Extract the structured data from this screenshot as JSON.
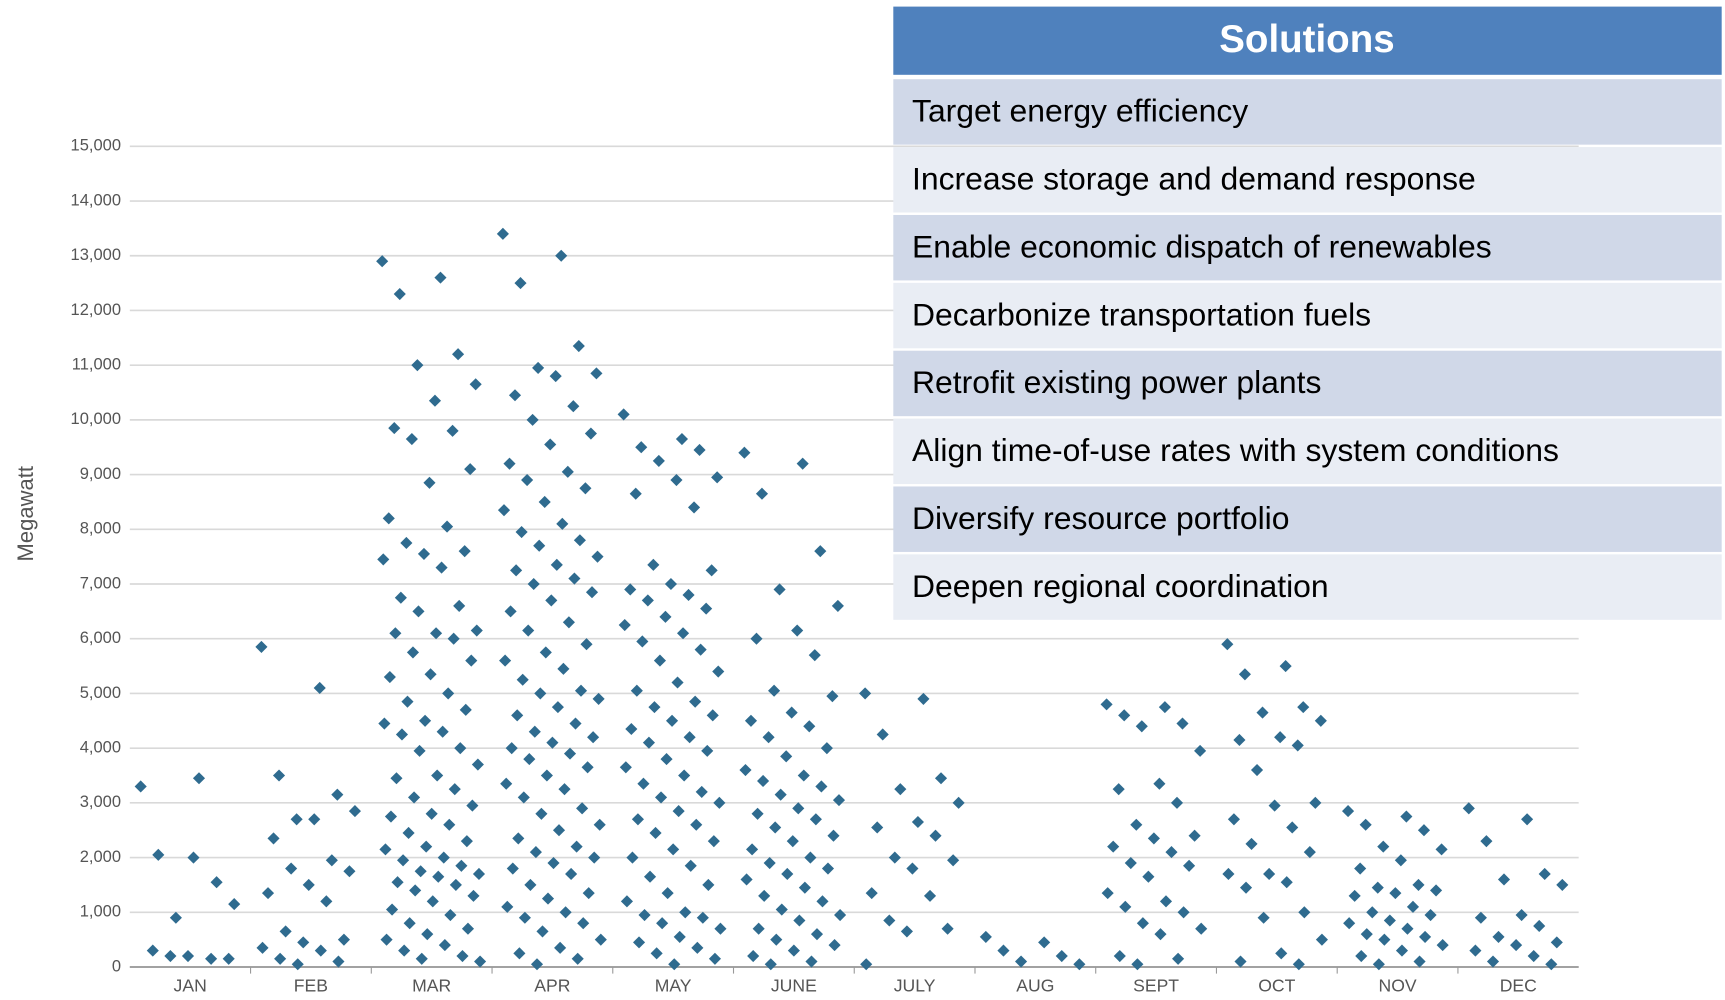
{
  "chart_data": {
    "type": "strip",
    "y_label": "Megawatt",
    "categories": [
      "JAN",
      "FEB",
      "MAR",
      "APR",
      "MAY",
      "JUNE",
      "JULY",
      "AUG",
      "SEPT",
      "OCT",
      "NOV",
      "DEC"
    ],
    "values": [
      [
        3300,
        3450,
        2050,
        1550,
        900,
        1150,
        2000,
        300,
        150,
        200,
        150,
        200
      ],
      [
        5850,
        5100,
        3500,
        3150,
        2700,
        2850,
        2700,
        2350,
        1950,
        1800,
        1750,
        1500,
        1350,
        1200,
        650,
        500,
        450,
        350,
        300,
        150,
        100,
        50
      ],
      [
        12900,
        12600,
        12300,
        11200,
        11000,
        10650,
        10350,
        9850,
        9800,
        9650,
        9100,
        8850,
        8200,
        8050,
        7750,
        7600,
        7550,
        7450,
        7300,
        6750,
        6600,
        6500,
        6150,
        6100,
        6100,
        6000,
        5750,
        5600,
        5350,
        5300,
        5000,
        4850,
        4700,
        4500,
        4450,
        4300,
        4250,
        4000,
        3950,
        3700,
        3500,
        3450,
        3250,
        3100,
        2950,
        2800,
        2750,
        2600,
        2450,
        2300,
        2200,
        2150,
        2000,
        1950,
        1850,
        1750,
        1700,
        1650,
        1550,
        1500,
        1400,
        1300,
        1200,
        1050,
        950,
        800,
        700,
        600,
        500,
        400,
        300,
        200,
        150,
        100
      ],
      [
        13400,
        13000,
        12500,
        11350,
        10950,
        10850,
        10800,
        10450,
        10250,
        10000,
        9750,
        9550,
        9200,
        9050,
        8900,
        8750,
        8500,
        8350,
        8100,
        7950,
        7800,
        7700,
        7500,
        7350,
        7250,
        7100,
        7000,
        6850,
        6700,
        6500,
        6300,
        6150,
        5900,
        5750,
        5600,
        5450,
        5250,
        5050,
        5000,
        4900,
        4750,
        4600,
        4450,
        4300,
        4200,
        4100,
        4000,
        3900,
        3800,
        3650,
        3500,
        3350,
        3250,
        3100,
        2900,
        2800,
        2600,
        2500,
        2350,
        2200,
        2100,
        2000,
        1900,
        1800,
        1700,
        1500,
        1350,
        1250,
        1100,
        1000,
        900,
        800,
        650,
        500,
        350,
        250,
        150,
        50
      ],
      [
        10100,
        9650,
        9500,
        9450,
        9250,
        8950,
        8900,
        8650,
        8400,
        7350,
        7250,
        7000,
        6900,
        6800,
        6700,
        6550,
        6400,
        6250,
        6100,
        5950,
        5800,
        5600,
        5400,
        5200,
        5050,
        4850,
        4750,
        4600,
        4500,
        4350,
        4200,
        4100,
        3950,
        3800,
        3650,
        3500,
        3350,
        3200,
        3100,
        3000,
        2850,
        2700,
        2600,
        2450,
        2300,
        2150,
        2000,
        1850,
        1650,
        1500,
        1350,
        1200,
        1000,
        950,
        900,
        800,
        700,
        550,
        450,
        350,
        250,
        150,
        50
      ],
      [
        9400,
        9200,
        8650,
        7600,
        6900,
        6600,
        6150,
        6000,
        5700,
        5050,
        4950,
        4650,
        4500,
        4400,
        4200,
        4000,
        3850,
        3600,
        3500,
        3400,
        3300,
        3150,
        3050,
        2900,
        2800,
        2700,
        2550,
        2400,
        2300,
        2150,
        2000,
        1900,
        1800,
        1700,
        1600,
        1450,
        1300,
        1200,
        1050,
        950,
        850,
        700,
        600,
        500,
        400,
        300,
        200,
        100,
        50
      ],
      [
        5000,
        4900,
        4250,
        3450,
        3250,
        3000,
        2650,
        2550,
        2400,
        2000,
        1950,
        1800,
        1350,
        1300,
        850,
        700,
        650,
        50
      ],
      [
        550,
        450,
        300,
        200,
        100,
        50
      ],
      [
        4800,
        4750,
        4600,
        4450,
        4400,
        3950,
        3350,
        3250,
        3000,
        2600,
        2400,
        2350,
        2200,
        2100,
        1900,
        1850,
        1650,
        1350,
        1200,
        1100,
        1000,
        800,
        700,
        600,
        200,
        150,
        50
      ],
      [
        5900,
        5500,
        5350,
        4750,
        4650,
        4500,
        4200,
        4150,
        4050,
        3600,
        3000,
        2950,
        2700,
        2550,
        2250,
        2100,
        1700,
        1700,
        1550,
        1450,
        1000,
        900,
        500,
        250,
        100,
        50
      ],
      [
        2850,
        2750,
        2600,
        2500,
        2200,
        2150,
        1950,
        1800,
        1500,
        1450,
        1400,
        1350,
        1300,
        1100,
        1000,
        950,
        850,
        800,
        700,
        600,
        550,
        500,
        400,
        300,
        200,
        100,
        50
      ],
      [
        2900,
        2700,
        2300,
        1700,
        1600,
        1500,
        950,
        900,
        750,
        550,
        450,
        400,
        300,
        200,
        100,
        50
      ]
    ],
    "color": "#2f6b8f",
    "ylim": [
      0,
      15000
    ],
    "yticks": [
      0,
      {
        "value": 1000,
        "label": "1,000"
      },
      {
        "value": 2000,
        "label": "2,000"
      },
      {
        "value": 3000,
        "label": "3,000"
      },
      {
        "value": 4000,
        "label": "4,000"
      },
      {
        "value": 5000,
        "label": "5,000"
      },
      {
        "value": 6000,
        "label": "6,000"
      },
      {
        "value": 7000,
        "label": "7,000"
      },
      {
        "value": 8000,
        "label": "8,000"
      },
      {
        "value": 9000,
        "label": "9,000"
      },
      {
        "value": 10000,
        "label": "10,000"
      },
      {
        "value": 11000,
        "label": "11,000"
      },
      {
        "value": 12000,
        "label": "12,000"
      },
      {
        "value": 13000,
        "label": "13,000"
      },
      {
        "value": 14000,
        "label": "14,000"
      },
      {
        "value": 15000,
        "label": "15,000"
      }
    ],
    "grid": true
  },
  "table": {
    "header": "Solutions",
    "rows": [
      "Target energy efficiency",
      "Increase storage and demand response",
      "Enable economic dispatch of renewables",
      "Decarbonize transportation fuels",
      "Retrofit existing power plants",
      "Align time-of-use rates with system conditions",
      "Diversify resource portfolio",
      "Deepen regional coordination"
    ]
  }
}
